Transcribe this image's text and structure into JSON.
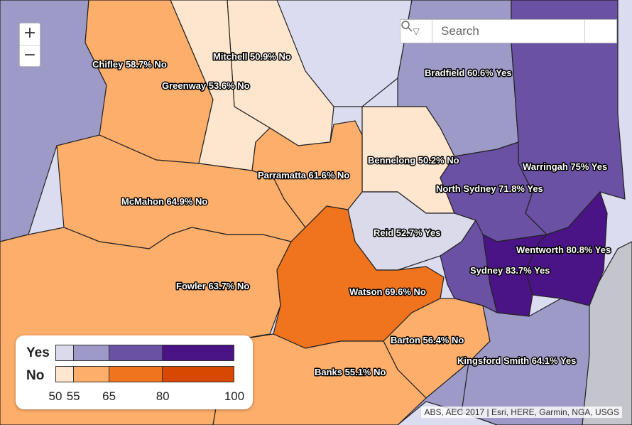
{
  "colors": {
    "background": "#dcdcf0",
    "outer_fill": "#9e9ac8",
    "unlabeled_east": "#c4c4cc",
    "yes": [
      "#dadaeb",
      "#9e9ac8",
      "#6a51a3",
      "#4a1486"
    ],
    "no": [
      "#fee6ce",
      "#fdae6b",
      "#f0731e",
      "#d94801"
    ]
  },
  "districts": [
    {
      "id": "chifley",
      "label": "Chifley 58.7% No",
      "result": "No",
      "percent": 58.7
    },
    {
      "id": "mitchell",
      "label": "Mitchell 50.9% No",
      "result": "No",
      "percent": 50.9
    },
    {
      "id": "greenway",
      "label": "Greenway 53.6% No",
      "result": "No",
      "percent": 53.6
    },
    {
      "id": "bradfield",
      "label": "Bradfield 60.6% Yes",
      "result": "Yes",
      "percent": 60.6
    },
    {
      "id": "bennelong",
      "label": "Bennelong 50.2% No",
      "result": "No",
      "percent": 50.2
    },
    {
      "id": "warringah",
      "label": "Warringah 75% Yes",
      "result": "Yes",
      "percent": 75
    },
    {
      "id": "parramatta",
      "label": "Parramatta 61.6% No",
      "result": "No",
      "percent": 61.6
    },
    {
      "id": "north-sydney",
      "label": "North Sydney 71.8% Yes",
      "result": "Yes",
      "percent": 71.8
    },
    {
      "id": "mcmahon",
      "label": "McMahon 64.9% No",
      "result": "No",
      "percent": 64.9
    },
    {
      "id": "reid",
      "label": "Reid 52.7% Yes",
      "result": "Yes",
      "percent": 52.7
    },
    {
      "id": "wentworth",
      "label": "Wentworth 80.8% Yes",
      "result": "Yes",
      "percent": 80.8
    },
    {
      "id": "sydney",
      "label": "Sydney 83.7% Yes",
      "result": "Yes",
      "percent": 83.7
    },
    {
      "id": "fowler",
      "label": "Fowler 63.7% No",
      "result": "No",
      "percent": 63.7
    },
    {
      "id": "watson",
      "label": "Watson 69.6% No",
      "result": "No",
      "percent": 69.6
    },
    {
      "id": "barton",
      "label": "Barton 56.4% No",
      "result": "No",
      "percent": 56.4
    },
    {
      "id": "kingsford-smith",
      "label": "Kingsford Smith 64.1% Yes",
      "result": "Yes",
      "percent": 64.1
    },
    {
      "id": "banks",
      "label": "Banks 55.1% No",
      "result": "No",
      "percent": 55.1
    }
  ],
  "legend": {
    "yes_label": "Yes",
    "no_label": "No",
    "breaks": [
      50,
      55,
      65,
      80,
      100
    ],
    "tick_labels": [
      "50",
      "55",
      "65",
      "80",
      "100"
    ]
  },
  "controls": {
    "zoom_in": "+",
    "zoom_out": "−",
    "search_dropdown_icon": "▽",
    "search_placeholder": "Search",
    "search_icon": "magnifier-icon"
  },
  "attribution": "ABS, AEC 2017 | Esri, HERE, Garmin, NGA, USGS"
}
